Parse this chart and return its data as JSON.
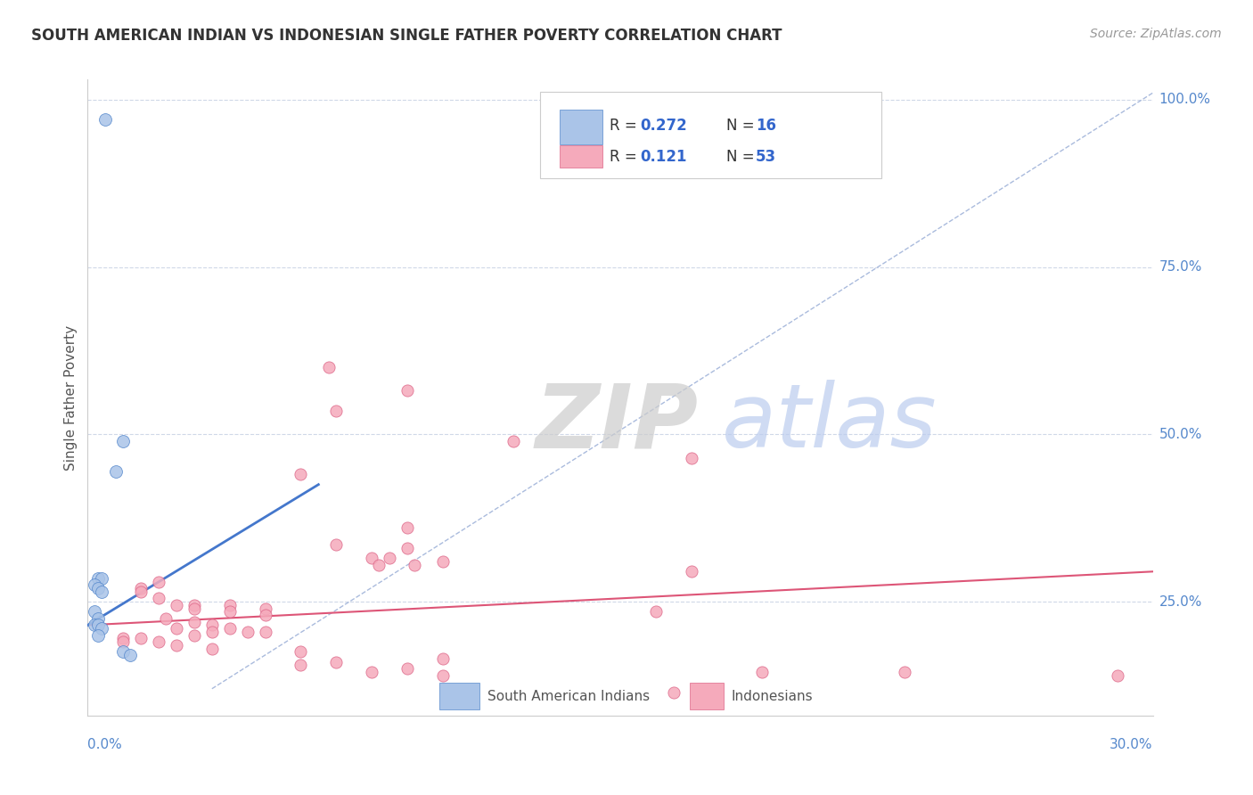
{
  "title": "SOUTH AMERICAN INDIAN VS INDONESIAN SINGLE FATHER POVERTY CORRELATION CHART",
  "source": "Source: ZipAtlas.com",
  "ylabel": "Single Father Poverty",
  "ylabel_right_ticks": [
    "100.0%",
    "75.0%",
    "50.0%",
    "25.0%"
  ],
  "ylabel_right_vals": [
    1.0,
    0.75,
    0.5,
    0.25
  ],
  "xlim": [
    0.0,
    0.3
  ],
  "ylim": [
    0.08,
    1.03
  ],
  "blue_R": "0.272",
  "blue_N": "16",
  "pink_R": "0.121",
  "pink_N": "53",
  "blue_color": "#aac4e8",
  "pink_color": "#f5aabb",
  "blue_edge_color": "#5588cc",
  "pink_edge_color": "#dd6688",
  "blue_line_color": "#4477cc",
  "pink_line_color": "#dd5577",
  "diag_line_color": "#aabbdd",
  "watermark_zip_color": "#cccccc",
  "watermark_atlas_color": "#bbccee",
  "legend_text_color": "#3366cc",
  "right_axis_color": "#5588cc",
  "blue_scatter": [
    [
      0.005,
      0.97
    ],
    [
      0.01,
      0.49
    ],
    [
      0.008,
      0.445
    ],
    [
      0.003,
      0.285
    ],
    [
      0.004,
      0.285
    ],
    [
      0.002,
      0.275
    ],
    [
      0.003,
      0.27
    ],
    [
      0.004,
      0.265
    ],
    [
      0.002,
      0.235
    ],
    [
      0.003,
      0.225
    ],
    [
      0.002,
      0.215
    ],
    [
      0.003,
      0.215
    ],
    [
      0.004,
      0.21
    ],
    [
      0.003,
      0.2
    ],
    [
      0.01,
      0.175
    ],
    [
      0.012,
      0.17
    ]
  ],
  "pink_scatter": [
    [
      0.068,
      0.6
    ],
    [
      0.09,
      0.565
    ],
    [
      0.07,
      0.535
    ],
    [
      0.12,
      0.49
    ],
    [
      0.17,
      0.465
    ],
    [
      0.06,
      0.44
    ],
    [
      0.09,
      0.36
    ],
    [
      0.07,
      0.335
    ],
    [
      0.09,
      0.33
    ],
    [
      0.08,
      0.315
    ],
    [
      0.085,
      0.315
    ],
    [
      0.082,
      0.305
    ],
    [
      0.1,
      0.31
    ],
    [
      0.092,
      0.305
    ],
    [
      0.17,
      0.295
    ],
    [
      0.02,
      0.28
    ],
    [
      0.015,
      0.27
    ],
    [
      0.015,
      0.265
    ],
    [
      0.02,
      0.255
    ],
    [
      0.025,
      0.245
    ],
    [
      0.03,
      0.245
    ],
    [
      0.04,
      0.245
    ],
    [
      0.05,
      0.24
    ],
    [
      0.03,
      0.24
    ],
    [
      0.16,
      0.235
    ],
    [
      0.04,
      0.235
    ],
    [
      0.05,
      0.23
    ],
    [
      0.022,
      0.225
    ],
    [
      0.03,
      0.22
    ],
    [
      0.035,
      0.215
    ],
    [
      0.04,
      0.21
    ],
    [
      0.025,
      0.21
    ],
    [
      0.035,
      0.205
    ],
    [
      0.045,
      0.205
    ],
    [
      0.05,
      0.205
    ],
    [
      0.03,
      0.2
    ],
    [
      0.01,
      0.195
    ],
    [
      0.015,
      0.195
    ],
    [
      0.01,
      0.19
    ],
    [
      0.02,
      0.19
    ],
    [
      0.025,
      0.185
    ],
    [
      0.035,
      0.18
    ],
    [
      0.06,
      0.175
    ],
    [
      0.1,
      0.165
    ],
    [
      0.07,
      0.16
    ],
    [
      0.06,
      0.155
    ],
    [
      0.09,
      0.15
    ],
    [
      0.08,
      0.145
    ],
    [
      0.1,
      0.14
    ],
    [
      0.23,
      0.145
    ],
    [
      0.19,
      0.145
    ],
    [
      0.29,
      0.14
    ],
    [
      0.165,
      0.115
    ]
  ],
  "blue_trend_x": [
    0.0,
    0.065
  ],
  "blue_trend_y": [
    0.215,
    0.425
  ],
  "pink_trend_x": [
    0.0,
    0.3
  ],
  "pink_trend_y": [
    0.215,
    0.295
  ],
  "diag_trend_x": [
    0.035,
    0.3
  ],
  "diag_trend_y": [
    0.12,
    1.01
  ]
}
